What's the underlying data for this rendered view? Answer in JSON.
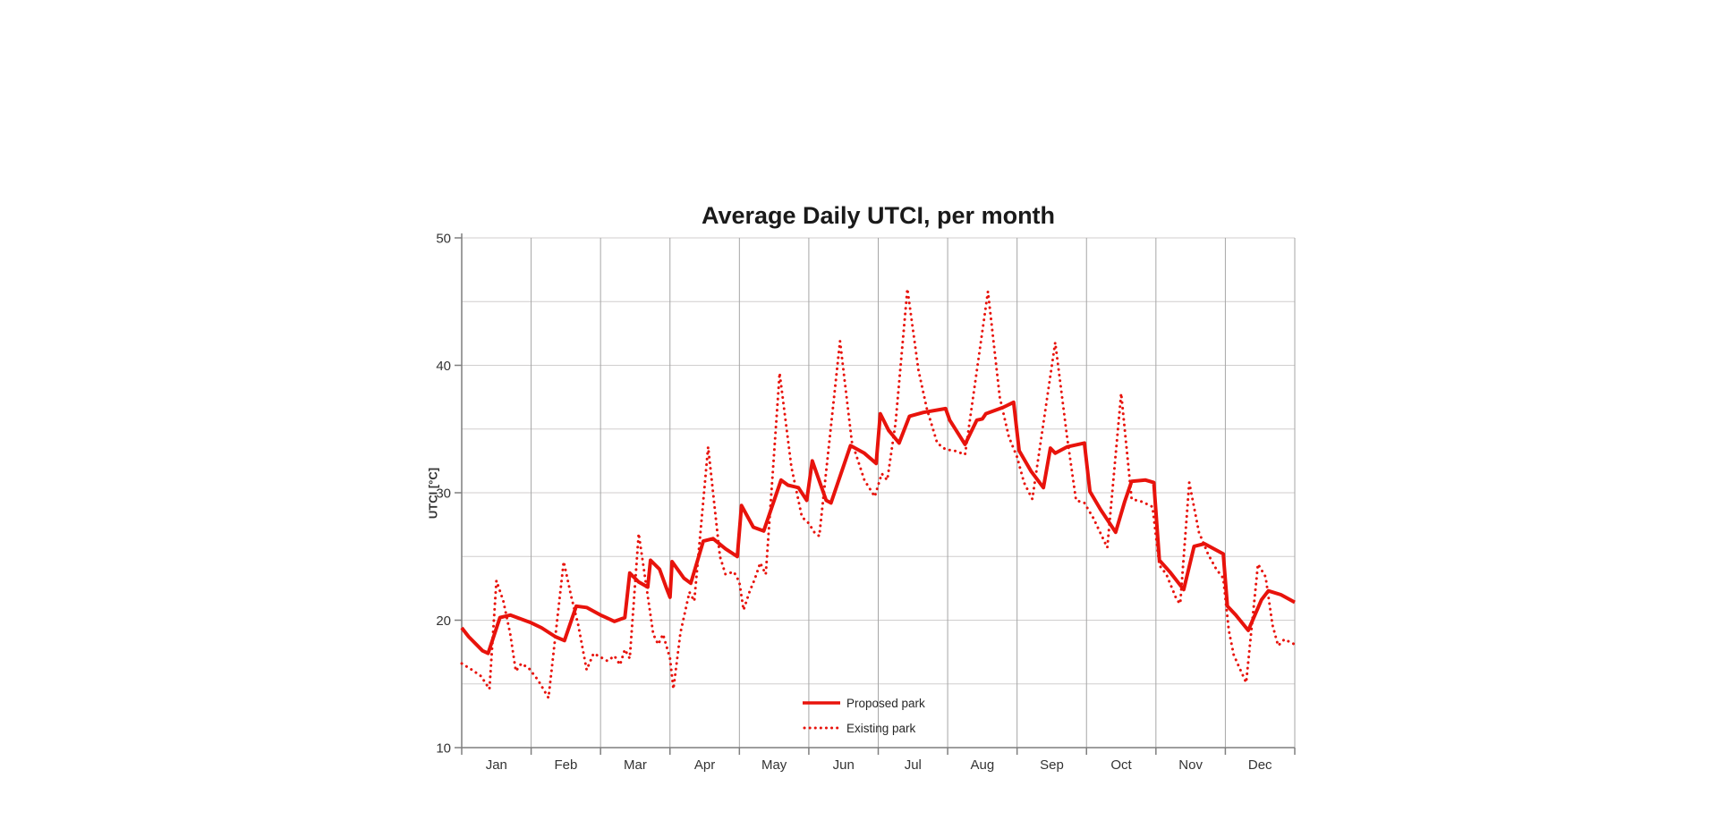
{
  "page": {
    "background": "#ffffff"
  },
  "chart_data": {
    "type": "line",
    "title": "Average Daily UTCI, per month",
    "x_axis": {
      "categories": [
        "Jan",
        "Feb",
        "Mar",
        "Apr",
        "May",
        "Jun",
        "Jul",
        "Aug",
        "Sep",
        "Oct",
        "Nov",
        "Dec"
      ],
      "range_months": [
        0,
        12
      ]
    },
    "y_axis": {
      "title": "UTCI [°C]",
      "ticks": [
        10,
        20,
        30,
        40,
        50
      ],
      "minor_step": 5,
      "ylim": [
        10,
        50
      ]
    },
    "grid": {
      "h_color": "#d0cece",
      "v_color": "#a6a6a6",
      "axis_color": "#7f7f7f",
      "tick_label_color": "#333333"
    },
    "legend": {
      "position": "inside-bottom-center"
    },
    "series": [
      {
        "name": "Proposed park",
        "style": "solid",
        "color": "#e8130c",
        "points": [
          [
            0.0,
            19.4
          ],
          [
            0.1,
            18.7
          ],
          [
            0.3,
            17.6
          ],
          [
            0.38,
            17.4
          ],
          [
            0.55,
            20.2
          ],
          [
            0.7,
            20.4
          ],
          [
            0.9,
            20.0
          ],
          [
            1.0,
            19.8
          ],
          [
            1.15,
            19.4
          ],
          [
            1.35,
            18.7
          ],
          [
            1.48,
            18.4
          ],
          [
            1.65,
            21.1
          ],
          [
            1.8,
            21.0
          ],
          [
            2.0,
            20.4
          ],
          [
            2.08,
            20.2
          ],
          [
            2.2,
            19.9
          ],
          [
            2.35,
            20.2
          ],
          [
            2.42,
            23.7
          ],
          [
            2.55,
            23.0
          ],
          [
            2.68,
            22.6
          ],
          [
            2.72,
            24.7
          ],
          [
            2.85,
            24.0
          ],
          [
            2.95,
            22.5
          ],
          [
            3.0,
            21.8
          ],
          [
            3.03,
            24.6
          ],
          [
            3.2,
            23.3
          ],
          [
            3.3,
            22.9
          ],
          [
            3.48,
            26.2
          ],
          [
            3.62,
            26.4
          ],
          [
            3.8,
            25.6
          ],
          [
            3.97,
            25.0
          ],
          [
            4.03,
            29.0
          ],
          [
            4.2,
            27.3
          ],
          [
            4.35,
            27.0
          ],
          [
            4.6,
            31.0
          ],
          [
            4.7,
            30.6
          ],
          [
            4.85,
            30.4
          ],
          [
            4.97,
            29.4
          ],
          [
            5.05,
            32.5
          ],
          [
            5.25,
            29.4
          ],
          [
            5.32,
            29.2
          ],
          [
            5.6,
            33.7
          ],
          [
            5.8,
            33.1
          ],
          [
            5.97,
            32.3
          ],
          [
            6.03,
            36.2
          ],
          [
            6.15,
            34.9
          ],
          [
            6.3,
            33.9
          ],
          [
            6.45,
            36.0
          ],
          [
            6.65,
            36.3
          ],
          [
            6.97,
            36.6
          ],
          [
            7.03,
            35.7
          ],
          [
            7.25,
            33.8
          ],
          [
            7.42,
            35.7
          ],
          [
            7.5,
            35.8
          ],
          [
            7.55,
            36.2
          ],
          [
            7.8,
            36.7
          ],
          [
            7.95,
            37.1
          ],
          [
            8.03,
            33.3
          ],
          [
            8.2,
            31.7
          ],
          [
            8.38,
            30.4
          ],
          [
            8.48,
            33.5
          ],
          [
            8.55,
            33.1
          ],
          [
            8.72,
            33.6
          ],
          [
            8.97,
            33.9
          ],
          [
            9.05,
            30.1
          ],
          [
            9.2,
            28.7
          ],
          [
            9.42,
            26.9
          ],
          [
            9.55,
            29.3
          ],
          [
            9.65,
            30.9
          ],
          [
            9.85,
            31.0
          ],
          [
            9.97,
            30.8
          ],
          [
            10.05,
            24.7
          ],
          [
            10.2,
            23.8
          ],
          [
            10.4,
            22.4
          ],
          [
            10.55,
            25.8
          ],
          [
            10.7,
            26.0
          ],
          [
            10.97,
            25.2
          ],
          [
            11.03,
            21.1
          ],
          [
            11.15,
            20.4
          ],
          [
            11.33,
            19.2
          ],
          [
            11.52,
            21.6
          ],
          [
            11.62,
            22.3
          ],
          [
            11.8,
            22.0
          ],
          [
            12.0,
            21.4
          ]
        ]
      },
      {
        "name": "Existing park",
        "style": "dotted",
        "color": "#e8130c",
        "points": [
          [
            0.0,
            16.6
          ],
          [
            0.15,
            16.1
          ],
          [
            0.28,
            15.6
          ],
          [
            0.4,
            14.6
          ],
          [
            0.5,
            23.1
          ],
          [
            0.6,
            21.5
          ],
          [
            0.7,
            18.9
          ],
          [
            0.78,
            16.0
          ],
          [
            0.86,
            16.6
          ],
          [
            0.97,
            16.2
          ],
          [
            1.1,
            15.3
          ],
          [
            1.25,
            13.9
          ],
          [
            1.47,
            24.6
          ],
          [
            1.58,
            21.8
          ],
          [
            1.68,
            19.6
          ],
          [
            1.8,
            16.1
          ],
          [
            1.9,
            17.4
          ],
          [
            2.0,
            17.1
          ],
          [
            2.1,
            16.8
          ],
          [
            2.2,
            17.2
          ],
          [
            2.28,
            16.5
          ],
          [
            2.35,
            17.7
          ],
          [
            2.42,
            17.0
          ],
          [
            2.55,
            26.8
          ],
          [
            2.67,
            22.3
          ],
          [
            2.76,
            18.9
          ],
          [
            2.83,
            18.1
          ],
          [
            2.9,
            18.9
          ],
          [
            3.0,
            17.0
          ],
          [
            3.05,
            14.6
          ],
          [
            3.15,
            19.0
          ],
          [
            3.28,
            22.2
          ],
          [
            3.35,
            21.5
          ],
          [
            3.55,
            33.6
          ],
          [
            3.72,
            25.0
          ],
          [
            3.8,
            23.6
          ],
          [
            3.92,
            23.8
          ],
          [
            4.0,
            23.0
          ],
          [
            4.06,
            20.8
          ],
          [
            4.15,
            22.3
          ],
          [
            4.22,
            23.2
          ],
          [
            4.3,
            24.5
          ],
          [
            4.38,
            23.6
          ],
          [
            4.58,
            39.4
          ],
          [
            4.75,
            32.0
          ],
          [
            4.9,
            28.1
          ],
          [
            5.0,
            27.6
          ],
          [
            5.08,
            26.9
          ],
          [
            5.15,
            26.6
          ],
          [
            5.45,
            41.9
          ],
          [
            5.62,
            34.0
          ],
          [
            5.8,
            31.0
          ],
          [
            5.95,
            29.7
          ],
          [
            6.05,
            31.5
          ],
          [
            6.13,
            31.0
          ],
          [
            6.25,
            35.5
          ],
          [
            6.42,
            46.0
          ],
          [
            6.58,
            39.6
          ],
          [
            6.7,
            36.6
          ],
          [
            6.85,
            33.9
          ],
          [
            6.97,
            33.4
          ],
          [
            7.1,
            33.3
          ],
          [
            7.25,
            33.0
          ],
          [
            7.58,
            45.8
          ],
          [
            7.75,
            37.5
          ],
          [
            7.88,
            34.4
          ],
          [
            8.0,
            32.8
          ],
          [
            8.1,
            30.8
          ],
          [
            8.22,
            29.5
          ],
          [
            8.55,
            41.8
          ],
          [
            8.72,
            34.4
          ],
          [
            8.85,
            29.4
          ],
          [
            8.97,
            29.2
          ],
          [
            9.1,
            28.0
          ],
          [
            9.3,
            25.7
          ],
          [
            9.5,
            37.8
          ],
          [
            9.65,
            29.5
          ],
          [
            9.8,
            29.3
          ],
          [
            9.95,
            28.9
          ],
          [
            10.05,
            24.3
          ],
          [
            10.15,
            23.6
          ],
          [
            10.3,
            21.6
          ],
          [
            10.35,
            21.3
          ],
          [
            10.48,
            30.8
          ],
          [
            10.62,
            26.9
          ],
          [
            10.75,
            25.2
          ],
          [
            10.87,
            24.0
          ],
          [
            10.97,
            23.3
          ],
          [
            11.05,
            19.2
          ],
          [
            11.12,
            17.3
          ],
          [
            11.2,
            16.3
          ],
          [
            11.3,
            15.1
          ],
          [
            11.47,
            24.4
          ],
          [
            11.58,
            23.4
          ],
          [
            11.68,
            19.6
          ],
          [
            11.76,
            18.0
          ],
          [
            11.85,
            18.5
          ],
          [
            12.0,
            18.1
          ]
        ]
      }
    ]
  }
}
